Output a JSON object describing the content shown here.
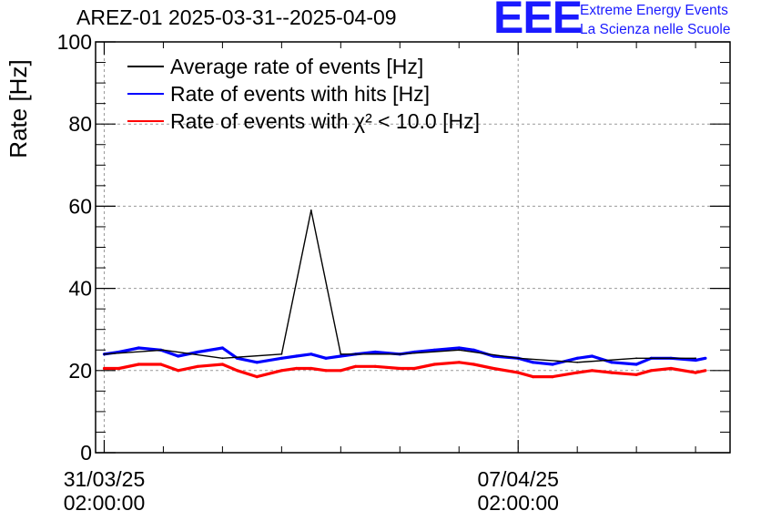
{
  "header": {
    "title": "AREZ-01 2025-03-31--2025-04-09",
    "logo_text": "EEE",
    "logo_line1": "Extreme Energy Events",
    "logo_line2": "La Scienza nelle Scuole",
    "logo_color": "#1a1aff"
  },
  "chart_data": {
    "type": "line",
    "title": "AREZ-01 2025-03-31--2025-04-09",
    "xlabel": "",
    "ylabel": "Rate [Hz]",
    "ylim": [
      0,
      100
    ],
    "y_ticks": [
      0,
      20,
      40,
      60,
      80,
      100
    ],
    "xlim": [
      "2025-03-30T22:30:00",
      "2025-04-10T16:00:00"
    ],
    "x_ticks": [
      {
        "date": "31/03/25",
        "time": "02:00:00",
        "datetime": "2025-03-31T02:00:00"
      },
      {
        "date": "07/04/25",
        "time": "02:00:00",
        "datetime": "2025-04-07T02:00:00"
      }
    ],
    "grid": true,
    "legend_position": "top-left",
    "series": [
      {
        "name": "Average rate of events [Hz]",
        "color": "#000000",
        "x": [
          "2025-03-31T02:00:00",
          "2025-04-01T02:00:00",
          "2025-04-02T02:00:00",
          "2025-04-03T02:00:00",
          "2025-04-03T14:00:00",
          "2025-04-04T02:00:00",
          "2025-04-05T02:00:00",
          "2025-04-06T02:00:00",
          "2025-04-07T02:00:00",
          "2025-04-08T02:00:00",
          "2025-04-09T02:00:00",
          "2025-04-10T02:00:00"
        ],
        "values": [
          24,
          25,
          23,
          24,
          59,
          24,
          24,
          25,
          23,
          22,
          23,
          23
        ]
      },
      {
        "name": "Rate of events with hits [Hz]",
        "color": "#0000ff",
        "x": [
          "2025-03-31T02:00:00",
          "2025-03-31T08:00:00",
          "2025-03-31T16:00:00",
          "2025-04-01T01:00:00",
          "2025-04-01T08:00:00",
          "2025-04-01T16:00:00",
          "2025-04-02T02:00:00",
          "2025-04-02T08:00:00",
          "2025-04-02T16:00:00",
          "2025-04-03T02:00:00",
          "2025-04-03T08:00:00",
          "2025-04-03T14:00:00",
          "2025-04-03T20:00:00",
          "2025-04-04T02:00:00",
          "2025-04-04T08:00:00",
          "2025-04-04T16:00:00",
          "2025-04-05T02:00:00",
          "2025-04-05T08:00:00",
          "2025-04-05T16:00:00",
          "2025-04-06T02:00:00",
          "2025-04-06T08:00:00",
          "2025-04-06T16:00:00",
          "2025-04-07T02:00:00",
          "2025-04-07T08:00:00",
          "2025-04-07T16:00:00",
          "2025-04-08T02:00:00",
          "2025-04-08T08:00:00",
          "2025-04-08T16:00:00",
          "2025-04-09T02:00:00",
          "2025-04-09T08:00:00",
          "2025-04-09T16:00:00",
          "2025-04-10T02:00:00",
          "2025-04-10T06:00:00"
        ],
        "values": [
          24,
          24.5,
          25.5,
          25,
          23.5,
          24.5,
          25.5,
          23,
          22,
          23,
          23.5,
          24,
          23,
          23.5,
          24,
          24.5,
          24,
          24.5,
          25,
          25.5,
          25,
          23.5,
          23,
          22,
          21.5,
          23,
          23.5,
          22,
          21.5,
          23,
          23,
          22.5,
          23
        ]
      },
      {
        "name": "Rate of events with χ² < 10.0 [Hz]",
        "color": "#ff0000",
        "x": [
          "2025-03-31T02:00:00",
          "2025-03-31T08:00:00",
          "2025-03-31T16:00:00",
          "2025-04-01T01:00:00",
          "2025-04-01T08:00:00",
          "2025-04-01T16:00:00",
          "2025-04-02T02:00:00",
          "2025-04-02T08:00:00",
          "2025-04-02T16:00:00",
          "2025-04-03T02:00:00",
          "2025-04-03T08:00:00",
          "2025-04-03T14:00:00",
          "2025-04-03T20:00:00",
          "2025-04-04T02:00:00",
          "2025-04-04T08:00:00",
          "2025-04-04T16:00:00",
          "2025-04-05T02:00:00",
          "2025-04-05T08:00:00",
          "2025-04-05T16:00:00",
          "2025-04-06T02:00:00",
          "2025-04-06T08:00:00",
          "2025-04-06T16:00:00",
          "2025-04-07T02:00:00",
          "2025-04-07T08:00:00",
          "2025-04-07T16:00:00",
          "2025-04-08T02:00:00",
          "2025-04-08T08:00:00",
          "2025-04-08T16:00:00",
          "2025-04-09T02:00:00",
          "2025-04-09T08:00:00",
          "2025-04-09T16:00:00",
          "2025-04-10T02:00:00",
          "2025-04-10T06:00:00"
        ],
        "values": [
          20.5,
          20.5,
          21.5,
          21.5,
          20,
          21,
          21.5,
          20,
          18.5,
          20,
          20.5,
          20.5,
          20,
          20,
          21,
          21,
          20.5,
          20.5,
          21.5,
          22,
          21.5,
          20.5,
          19.5,
          18.5,
          18.5,
          19.5,
          20,
          19.5,
          19,
          20,
          20.5,
          19.5,
          20
        ]
      }
    ]
  }
}
